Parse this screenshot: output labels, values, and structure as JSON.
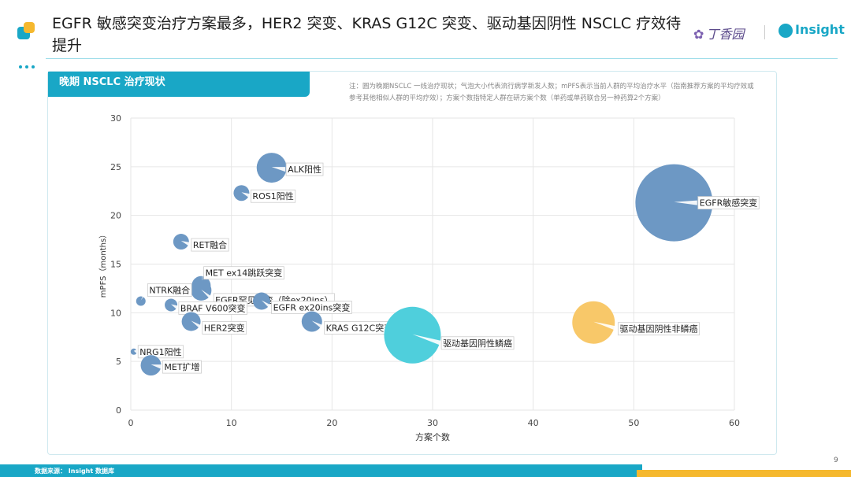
{
  "header": {
    "title": "EGFR 敏感突变治疗方案最多，HER2 突变、KRAS G12C 突变、驱动基因阴性 NSCLC 疗效待提升",
    "brand_dxy": "丁香园",
    "brand_insight": "Insight"
  },
  "panel": {
    "tab_label": "晚期 NSCLC 治疗现状",
    "note": "注：圆为晚期NSCLC 一线治疗现状；气泡大小代表流行病学新发人数；mPFS表示当前人群的平均治疗水平（指南推荐方案的平均疗效或参考其他相似人群的平均疗效）；方案个数指特定人群在研方案个数（单药或单药联合另一种药算2个方案）"
  },
  "footer": {
    "source": "数据来源： Insight 数据库",
    "page": "9"
  },
  "colors": {
    "accent": "#19a7c6",
    "orange": "#f5b82e",
    "blue_bubble": "#6d98c4",
    "cyan_bubble": "#4fcfdc",
    "yellow_bubble": "#f8c869"
  },
  "chart_data": {
    "type": "scatter",
    "xlabel": "方案个数",
    "ylabel": "mPFS（months）",
    "xlim": [
      0,
      60
    ],
    "ylim": [
      0,
      30
    ],
    "xticks": [
      0,
      10,
      20,
      30,
      40,
      50,
      60
    ],
    "yticks": [
      0,
      5,
      10,
      15,
      20,
      25,
      30
    ],
    "grid": true,
    "points": [
      {
        "label": "EGFR敏感突变",
        "x": 54,
        "y": 21.3,
        "size": 49,
        "color": "#6d98c4"
      },
      {
        "label": "ALK阳性",
        "x": 14,
        "y": 24.9,
        "size": 19,
        "color": "#6d98c4"
      },
      {
        "label": "ROS1阳性",
        "x": 11,
        "y": 22.3,
        "size": 10,
        "color": "#6d98c4"
      },
      {
        "label": "RET融合",
        "x": 5,
        "y": 17.3,
        "size": 10,
        "color": "#6d98c4"
      },
      {
        "label": "MET ex14跳跃突变",
        "x": 7,
        "y": 12.8,
        "size": 12,
        "color": "#6d98c4"
      },
      {
        "label": "EGFR罕见突变（除ex20ins）",
        "x": 7,
        "y": 12.3,
        "size": 13,
        "color": "#6d98c4"
      },
      {
        "label": "NTRK融合",
        "x": 1,
        "y": 11.2,
        "size": 6,
        "color": "#6d98c4"
      },
      {
        "label": "BRAF V600突变",
        "x": 4,
        "y": 10.8,
        "size": 8,
        "color": "#6d98c4"
      },
      {
        "label": "EGFR ex20ins突变",
        "x": 13,
        "y": 11.2,
        "size": 11,
        "color": "#6d98c4"
      },
      {
        "label": "HER2突变",
        "x": 6,
        "y": 9.1,
        "size": 12,
        "color": "#6d98c4"
      },
      {
        "label": "KRAS G12C突变",
        "x": 18,
        "y": 9.1,
        "size": 13,
        "color": "#6d98c4"
      },
      {
        "label": "驱动基因阴性鳞癌",
        "x": 28,
        "y": 7.7,
        "size": 36,
        "color": "#4fcfdc"
      },
      {
        "label": "驱动基因阴性非鳞癌",
        "x": 46,
        "y": 9.0,
        "size": 27,
        "color": "#f8c869"
      },
      {
        "label": "NRG1阳性",
        "x": 0.3,
        "y": 6.0,
        "size": 4,
        "color": "#6d98c4"
      },
      {
        "label": "MET扩增",
        "x": 2,
        "y": 4.6,
        "size": 13,
        "color": "#6d98c4"
      }
    ]
  }
}
